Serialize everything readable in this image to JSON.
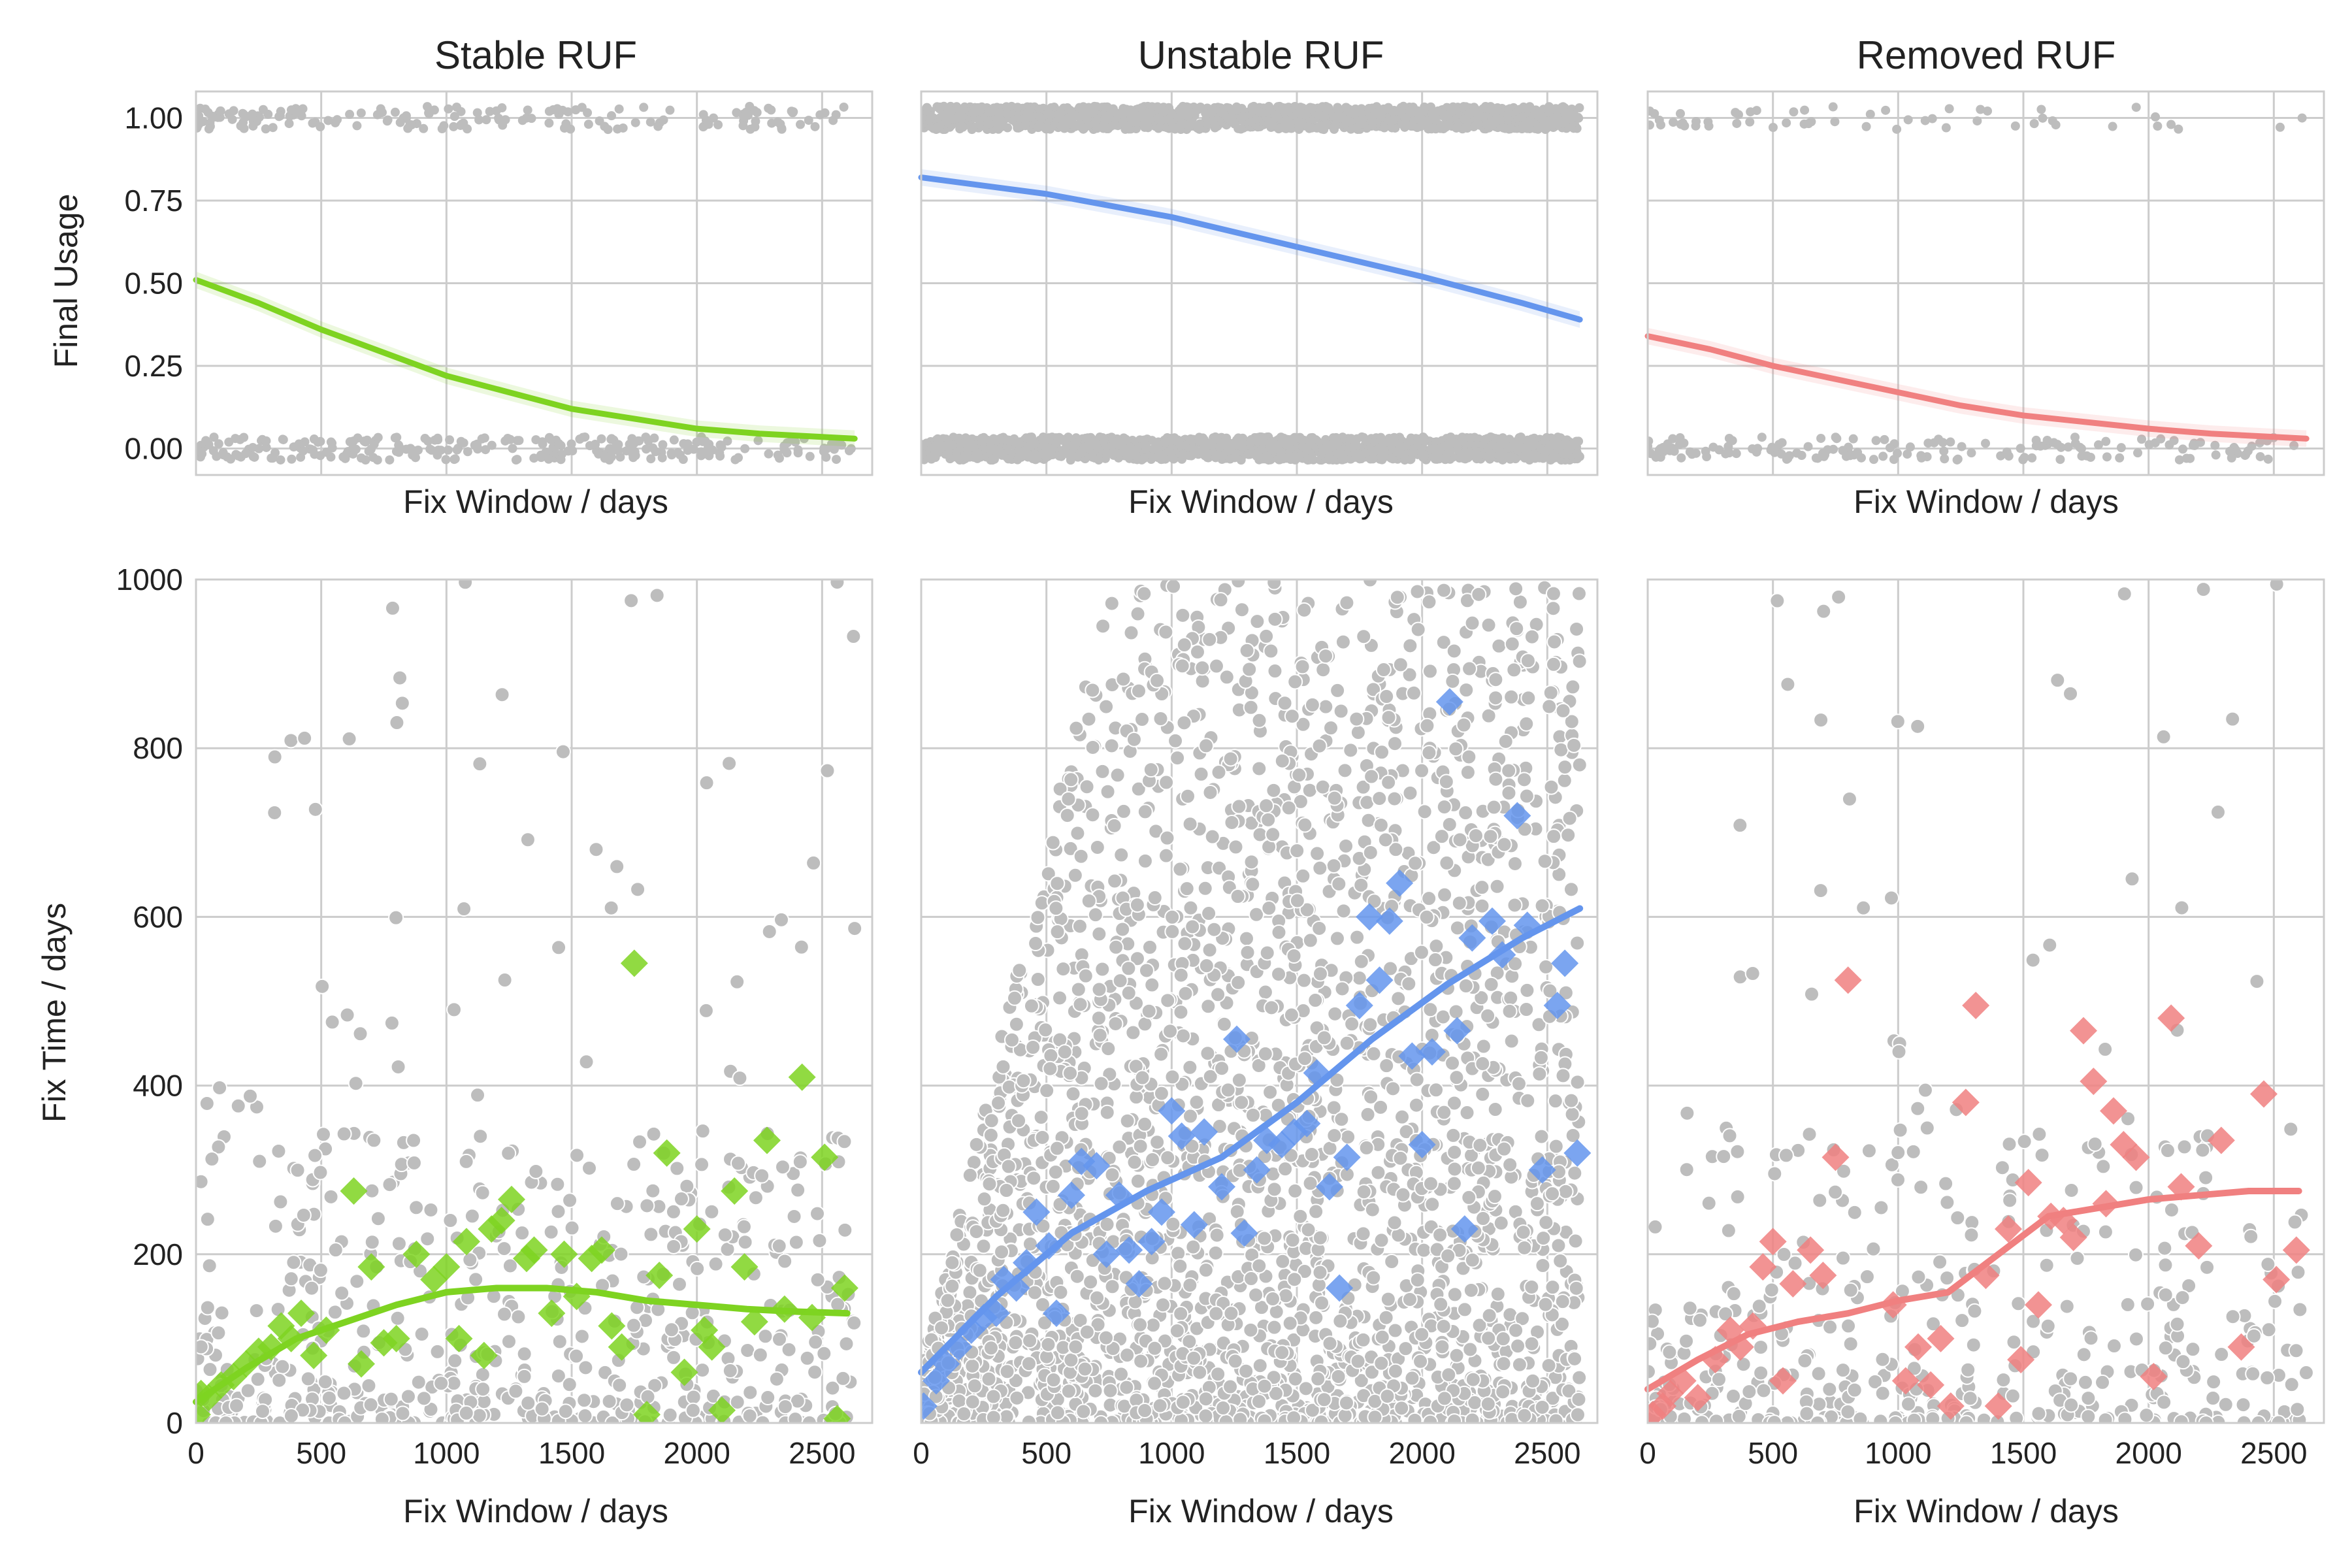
{
  "figure": {
    "background": "#ffffff",
    "grid_color": "#cccccc",
    "scatter_color": "#bdbdbd",
    "shared_xlabel": "Fix Window / days",
    "ylabel_top": "Final Usage",
    "ylabel_bottom": "Fix Time / days"
  },
  "chart_data": [
    {
      "type": "scatter",
      "title": "Stable RUF",
      "xlabel": "Fix Window / days",
      "ylabel": "Final Usage",
      "xlim": [
        0,
        2700
      ],
      "ylim": [
        -0.08,
        1.08
      ],
      "yticks": [
        "0.00",
        "0.25",
        "0.50",
        "0.75",
        "1.00"
      ],
      "grid": true,
      "color": "#7ed321",
      "fit_curve": [
        [
          0,
          0.51
        ],
        [
          250,
          0.44
        ],
        [
          500,
          0.36
        ],
        [
          750,
          0.29
        ],
        [
          1000,
          0.22
        ],
        [
          1250,
          0.17
        ],
        [
          1500,
          0.12
        ],
        [
          1750,
          0.09
        ],
        [
          2000,
          0.06
        ],
        [
          2250,
          0.045
        ],
        [
          2500,
          0.035
        ],
        [
          2630,
          0.03
        ]
      ]
    },
    {
      "type": "scatter",
      "title": "Unstable RUF",
      "xlabel": "Fix Window / days",
      "ylabel": "",
      "xlim": [
        0,
        2700
      ],
      "ylim": [
        -0.08,
        1.08
      ],
      "grid": true,
      "color": "#6495ed",
      "fit_curve": [
        [
          0,
          0.82
        ],
        [
          500,
          0.77
        ],
        [
          1000,
          0.7
        ],
        [
          1500,
          0.61
        ],
        [
          2000,
          0.52
        ],
        [
          2400,
          0.44
        ],
        [
          2630,
          0.39
        ]
      ]
    },
    {
      "type": "scatter",
      "title": "Removed RUF",
      "xlabel": "Fix Window / days",
      "ylabel": "",
      "xlim": [
        0,
        2700
      ],
      "ylim": [
        -0.08,
        1.08
      ],
      "grid": true,
      "color": "#f08080",
      "fit_curve": [
        [
          0,
          0.34
        ],
        [
          250,
          0.3
        ],
        [
          500,
          0.25
        ],
        [
          750,
          0.21
        ],
        [
          1000,
          0.17
        ],
        [
          1250,
          0.13
        ],
        [
          1500,
          0.1
        ],
        [
          1750,
          0.08
        ],
        [
          2000,
          0.06
        ],
        [
          2250,
          0.045
        ],
        [
          2500,
          0.035
        ],
        [
          2630,
          0.03
        ]
      ]
    },
    {
      "type": "scatter",
      "title": "",
      "xlabel": "Fix Window / days",
      "ylabel": "Fix Time / days",
      "xlim": [
        0,
        2700
      ],
      "ylim": [
        0,
        1000
      ],
      "xticks": [
        0,
        500,
        1000,
        1500,
        2000,
        2500
      ],
      "yticks": [
        0,
        200,
        400,
        600,
        800,
        1000
      ],
      "grid": true,
      "color": "#7ed321",
      "medians": [
        [
          5,
          10
        ],
        [
          20,
          35
        ],
        [
          50,
          30
        ],
        [
          100,
          45
        ],
        [
          150,
          55
        ],
        [
          200,
          70
        ],
        [
          250,
          85
        ],
        [
          300,
          90
        ],
        [
          340,
          115
        ],
        [
          380,
          100
        ],
        [
          420,
          130
        ],
        [
          470,
          80
        ],
        [
          520,
          110
        ],
        [
          630,
          275
        ],
        [
          660,
          70
        ],
        [
          700,
          185
        ],
        [
          750,
          95
        ],
        [
          800,
          100
        ],
        [
          880,
          200
        ],
        [
          950,
          170
        ],
        [
          1000,
          185
        ],
        [
          1050,
          100
        ],
        [
          1080,
          215
        ],
        [
          1150,
          80
        ],
        [
          1180,
          230
        ],
        [
          1220,
          240
        ],
        [
          1260,
          265
        ],
        [
          1320,
          195
        ],
        [
          1350,
          205
        ],
        [
          1420,
          130
        ],
        [
          1470,
          200
        ],
        [
          1520,
          150
        ],
        [
          1580,
          195
        ],
        [
          1620,
          205
        ],
        [
          1660,
          115
        ],
        [
          1700,
          90
        ],
        [
          1750,
          545
        ],
        [
          1800,
          10
        ],
        [
          1850,
          175
        ],
        [
          1880,
          320
        ],
        [
          1950,
          60
        ],
        [
          2000,
          230
        ],
        [
          2030,
          110
        ],
        [
          2060,
          90
        ],
        [
          2100,
          15
        ],
        [
          2150,
          275
        ],
        [
          2190,
          185
        ],
        [
          2230,
          120
        ],
        [
          2280,
          335
        ],
        [
          2350,
          135
        ],
        [
          2420,
          410
        ],
        [
          2460,
          125
        ],
        [
          2510,
          315
        ],
        [
          2560,
          5
        ],
        [
          2590,
          160
        ]
      ],
      "fit_curve": [
        [
          0,
          25
        ],
        [
          200,
          65
        ],
        [
          400,
          100
        ],
        [
          600,
          120
        ],
        [
          800,
          140
        ],
        [
          1000,
          155
        ],
        [
          1200,
          160
        ],
        [
          1400,
          160
        ],
        [
          1600,
          155
        ],
        [
          1800,
          145
        ],
        [
          2000,
          140
        ],
        [
          2200,
          135
        ],
        [
          2400,
          132
        ],
        [
          2600,
          130
        ]
      ]
    },
    {
      "type": "scatter",
      "title": "",
      "xlabel": "Fix Window / days",
      "ylabel": "",
      "xlim": [
        0,
        2700
      ],
      "ylim": [
        0,
        1000
      ],
      "xticks": [
        0,
        500,
        1000,
        1500,
        2000,
        2500
      ],
      "grid": true,
      "color": "#6495ed",
      "medians": [
        [
          10,
          20
        ],
        [
          60,
          50
        ],
        [
          100,
          70
        ],
        [
          150,
          90
        ],
        [
          200,
          110
        ],
        [
          250,
          125
        ],
        [
          300,
          130
        ],
        [
          330,
          170
        ],
        [
          380,
          160
        ],
        [
          420,
          190
        ],
        [
          460,
          250
        ],
        [
          510,
          210
        ],
        [
          540,
          130
        ],
        [
          600,
          270
        ],
        [
          640,
          310
        ],
        [
          700,
          305
        ],
        [
          740,
          200
        ],
        [
          790,
          270
        ],
        [
          830,
          205
        ],
        [
          870,
          165
        ],
        [
          920,
          215
        ],
        [
          960,
          250
        ],
        [
          1000,
          370
        ],
        [
          1040,
          340
        ],
        [
          1090,
          235
        ],
        [
          1130,
          345
        ],
        [
          1200,
          280
        ],
        [
          1260,
          455
        ],
        [
          1290,
          225
        ],
        [
          1340,
          300
        ],
        [
          1380,
          335
        ],
        [
          1440,
          330
        ],
        [
          1490,
          345
        ],
        [
          1540,
          355
        ],
        [
          1580,
          415
        ],
        [
          1630,
          280
        ],
        [
          1670,
          160
        ],
        [
          1700,
          315
        ],
        [
          1750,
          495
        ],
        [
          1790,
          600
        ],
        [
          1830,
          525
        ],
        [
          1870,
          595
        ],
        [
          1910,
          640
        ],
        [
          1960,
          435
        ],
        [
          2000,
          330
        ],
        [
          2040,
          440
        ],
        [
          2110,
          855
        ],
        [
          2140,
          465
        ],
        [
          2170,
          230
        ],
        [
          2200,
          575
        ],
        [
          2280,
          595
        ],
        [
          2320,
          555
        ],
        [
          2380,
          720
        ],
        [
          2420,
          590
        ],
        [
          2480,
          300
        ],
        [
          2540,
          495
        ],
        [
          2570,
          545
        ],
        [
          2620,
          320
        ]
      ],
      "fit_curve": [
        [
          0,
          60
        ],
        [
          300,
          150
        ],
        [
          600,
          225
        ],
        [
          900,
          275
        ],
        [
          1200,
          315
        ],
        [
          1500,
          380
        ],
        [
          1800,
          455
        ],
        [
          2100,
          520
        ],
        [
          2400,
          575
        ],
        [
          2630,
          610
        ]
      ]
    },
    {
      "type": "scatter",
      "title": "",
      "xlabel": "Fix Window / days",
      "ylabel": "",
      "xlim": [
        0,
        2700
      ],
      "ylim": [
        0,
        1000
      ],
      "xticks": [
        0,
        500,
        1000,
        1500,
        2000,
        2500
      ],
      "grid": true,
      "color": "#f08080",
      "medians": [
        [
          20,
          10
        ],
        [
          60,
          20
        ],
        [
          90,
          35
        ],
        [
          140,
          50
        ],
        [
          200,
          30
        ],
        [
          270,
          75
        ],
        [
          330,
          110
        ],
        [
          370,
          90
        ],
        [
          420,
          115
        ],
        [
          460,
          185
        ],
        [
          500,
          215
        ],
        [
          540,
          50
        ],
        [
          580,
          165
        ],
        [
          650,
          205
        ],
        [
          700,
          175
        ],
        [
          750,
          315
        ],
        [
          800,
          525
        ],
        [
          980,
          140
        ],
        [
          1030,
          50
        ],
        [
          1080,
          90
        ],
        [
          1130,
          45
        ],
        [
          1170,
          100
        ],
        [
          1210,
          20
        ],
        [
          1270,
          380
        ],
        [
          1310,
          495
        ],
        [
          1350,
          175
        ],
        [
          1400,
          20
        ],
        [
          1440,
          230
        ],
        [
          1490,
          75
        ],
        [
          1520,
          285
        ],
        [
          1560,
          140
        ],
        [
          1610,
          245
        ],
        [
          1660,
          240
        ],
        [
          1700,
          220
        ],
        [
          1740,
          465
        ],
        [
          1780,
          405
        ],
        [
          1830,
          260
        ],
        [
          1860,
          370
        ],
        [
          1900,
          330
        ],
        [
          1950,
          315
        ],
        [
          2020,
          55
        ],
        [
          2090,
          480
        ],
        [
          2130,
          280
        ],
        [
          2200,
          210
        ],
        [
          2290,
          335
        ],
        [
          2370,
          90
        ],
        [
          2460,
          390
        ],
        [
          2510,
          170
        ],
        [
          2590,
          205
        ]
      ],
      "fit_curve": [
        [
          0,
          40
        ],
        [
          200,
          75
        ],
        [
          400,
          105
        ],
        [
          600,
          120
        ],
        [
          800,
          130
        ],
        [
          1000,
          145
        ],
        [
          1200,
          155
        ],
        [
          1400,
          200
        ],
        [
          1600,
          245
        ],
        [
          1800,
          255
        ],
        [
          2000,
          265
        ],
        [
          2200,
          270
        ],
        [
          2400,
          275
        ],
        [
          2600,
          275
        ]
      ]
    }
  ]
}
